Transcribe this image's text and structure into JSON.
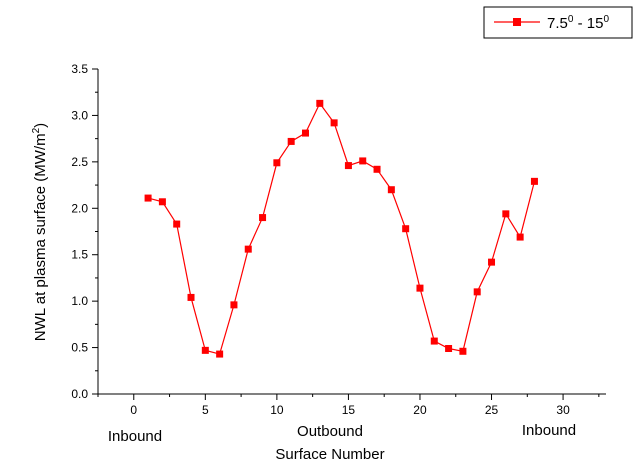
{
  "chart_data": {
    "type": "line",
    "xlabel": "Surface Number",
    "ylabel_main": "NWL at plasma surface (MW/m",
    "ylabel_sup": "2",
    "ylabel_tail": ")",
    "xlim": [
      -2.5,
      33
    ],
    "ylim": [
      0,
      3.5
    ],
    "xticks": [
      0,
      5,
      10,
      15,
      20,
      25,
      30
    ],
    "xtick_labels": [
      "0",
      "5",
      "10",
      "15",
      "20",
      "25",
      "30"
    ],
    "yticks": [
      0.0,
      0.5,
      1.0,
      1.5,
      2.0,
      2.5,
      3.0,
      3.5
    ],
    "ytick_labels": [
      "0.0",
      "0.5",
      "1.0",
      "1.5",
      "2.0",
      "2.5",
      "3.0",
      "3.5"
    ],
    "region_labels": {
      "left": "Inbound",
      "center": "Outbound",
      "right": "Inbound"
    },
    "legend": {
      "placement": "top-right",
      "part1": "7.5",
      "sup1": "0",
      "part2": " - 15",
      "sup2": "0"
    },
    "series": [
      {
        "color": "#ff0000",
        "marker": "square",
        "x": [
          1,
          2,
          3,
          4,
          5,
          6,
          7,
          8,
          9,
          10,
          11,
          12,
          13,
          14,
          15,
          16,
          17,
          18,
          19,
          20,
          21,
          22,
          23,
          24,
          25,
          26,
          27,
          28
        ],
        "y": [
          2.11,
          2.07,
          1.83,
          1.04,
          0.47,
          0.43,
          0.96,
          1.56,
          1.9,
          2.49,
          2.72,
          2.81,
          3.13,
          2.92,
          2.46,
          2.51,
          2.42,
          2.2,
          1.78,
          1.14,
          0.57,
          0.49,
          0.46,
          1.1,
          1.42,
          1.94,
          1.69,
          2.29
        ]
      }
    ]
  }
}
